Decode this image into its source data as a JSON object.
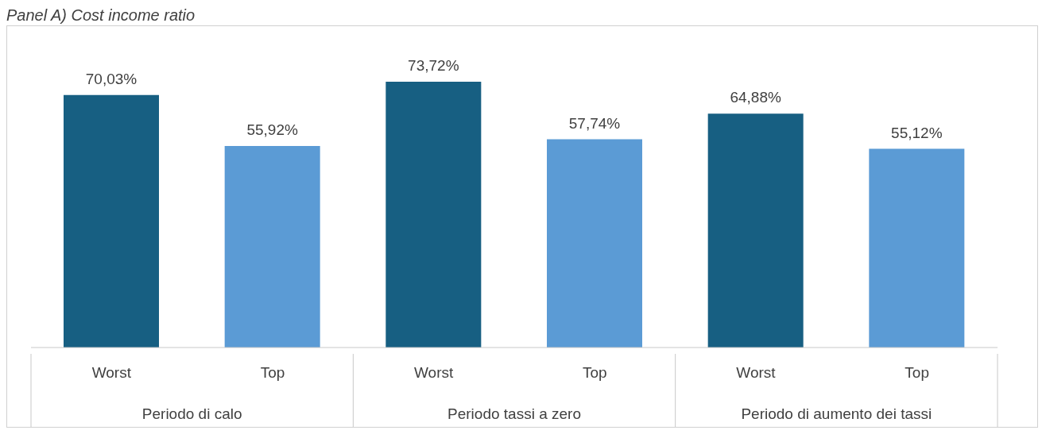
{
  "chart_data": {
    "type": "bar",
    "title": "Panel A) Cost income ratio",
    "categories": [
      "Worst",
      "Top",
      "Worst",
      "Top",
      "Worst",
      "Top"
    ],
    "values": [
      70.03,
      55.92,
      73.72,
      57.74,
      64.88,
      55.12
    ],
    "colors": [
      "#175f82",
      "#5b9bd5",
      "#175f82",
      "#5b9bd5",
      "#175f82",
      "#5b9bd5"
    ],
    "value_labels": [
      "70,03%",
      "55,92%",
      "73,72%",
      "57,74%",
      "64,88%",
      "55,12%"
    ],
    "annotations": [
      "Periodo di calo",
      "Periodo tassi a zero",
      "Periodo di aumento dei tassi"
    ],
    "grid": false
  }
}
